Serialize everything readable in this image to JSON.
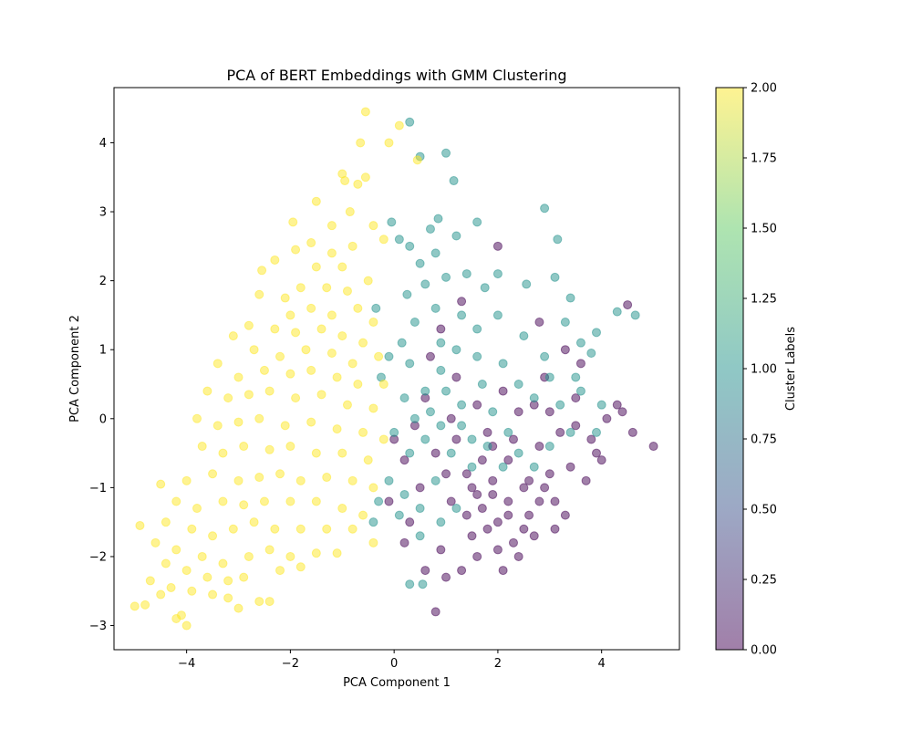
{
  "chart_data": {
    "type": "scatter",
    "title": "PCA of BERT Embeddings with GMM Clustering",
    "xlabel": "PCA Component 1",
    "ylabel": "PCA Component 2",
    "xlim": [
      -5.4,
      5.5
    ],
    "ylim": [
      -3.35,
      4.8
    ],
    "xticks": [
      -4,
      -2,
      0,
      2,
      4
    ],
    "yticks": [
      -3,
      -2,
      -1,
      0,
      1,
      2,
      3,
      4
    ],
    "xtick_labels": [
      "−4",
      "−2",
      "0",
      "2",
      "4"
    ],
    "ytick_labels": [
      "−3",
      "−2",
      "−1",
      "0",
      "1",
      "2",
      "3",
      "4"
    ],
    "grid": false,
    "marker_alpha": 0.5,
    "colorbar": {
      "label": "Cluster Labels",
      "range": [
        0.0,
        2.0
      ],
      "ticks": [
        0.0,
        0.25,
        0.5,
        0.75,
        1.0,
        1.25,
        1.5,
        1.75,
        2.0
      ],
      "tick_labels": [
        "0.00",
        "0.25",
        "0.50",
        "0.75",
        "1.00",
        "1.25",
        "1.50",
        "1.75",
        "2.00"
      ],
      "colormap": [
        "#440154",
        "#3b528b",
        "#21918c",
        "#5ec962",
        "#fde725"
      ]
    },
    "series": [
      {
        "cluster": 0,
        "color": "#440154",
        "points": [
          [
            1.4,
            -0.8
          ],
          [
            1.9,
            -1.1
          ],
          [
            2.2,
            -0.6
          ],
          [
            1.7,
            -1.3
          ],
          [
            2.5,
            -1.0
          ],
          [
            1.2,
            -0.3
          ],
          [
            2.8,
            -0.4
          ],
          [
            2.0,
            -1.5
          ],
          [
            1.5,
            -1.7
          ],
          [
            2.3,
            -1.8
          ],
          [
            3.0,
            -0.8
          ],
          [
            2.6,
            -1.4
          ],
          [
            1.1,
            -1.2
          ],
          [
            0.8,
            -0.5
          ],
          [
            1.8,
            -0.2
          ],
          [
            2.4,
            0.1
          ],
          [
            3.2,
            -0.2
          ],
          [
            3.5,
            0.3
          ],
          [
            2.9,
            0.6
          ],
          [
            2.1,
            0.4
          ],
          [
            1.6,
            0.2
          ],
          [
            0.5,
            -1.0
          ],
          [
            0.3,
            -1.5
          ],
          [
            0.9,
            -1.9
          ],
          [
            1.3,
            -2.2
          ],
          [
            1.0,
            -2.3
          ],
          [
            1.6,
            -2.0
          ],
          [
            2.0,
            -1.9
          ],
          [
            2.7,
            -1.7
          ],
          [
            3.1,
            -1.2
          ],
          [
            3.4,
            -0.7
          ],
          [
            3.8,
            -0.3
          ],
          [
            4.0,
            -0.6
          ],
          [
            4.3,
            0.2
          ],
          [
            4.6,
            -0.2
          ],
          [
            5.0,
            -0.4
          ],
          [
            4.4,
            0.1
          ],
          [
            4.5,
            1.65
          ],
          [
            3.6,
            0.8
          ],
          [
            3.3,
            1.0
          ],
          [
            2.8,
            1.4
          ],
          [
            2.0,
            2.5
          ],
          [
            1.3,
            1.7
          ],
          [
            0.9,
            1.3
          ],
          [
            0.7,
            0.9
          ],
          [
            0.8,
            -2.8
          ],
          [
            0.6,
            -2.2
          ],
          [
            0.2,
            -1.8
          ],
          [
            -0.1,
            -1.2
          ],
          [
            0.0,
            -0.3
          ],
          [
            0.4,
            -0.1
          ],
          [
            1.1,
            0.0
          ],
          [
            1.9,
            -0.4
          ],
          [
            2.2,
            -1.2
          ],
          [
            2.6,
            -0.9
          ],
          [
            1.5,
            -1.0
          ],
          [
            1.7,
            -0.6
          ],
          [
            2.3,
            -0.3
          ],
          [
            2.9,
            -1.0
          ],
          [
            3.3,
            -1.4
          ],
          [
            1.8,
            -1.6
          ],
          [
            2.4,
            -2.0
          ],
          [
            2.1,
            -2.2
          ],
          [
            1.4,
            -1.4
          ],
          [
            1.0,
            -0.8
          ],
          [
            3.7,
            -0.9
          ],
          [
            3.9,
            -0.5
          ],
          [
            4.1,
            0.0
          ],
          [
            2.7,
            0.2
          ],
          [
            3.0,
            0.1
          ],
          [
            3.5,
            -0.1
          ],
          [
            1.2,
            0.6
          ],
          [
            0.6,
            0.3
          ],
          [
            0.2,
            -0.6
          ],
          [
            2.5,
            -1.6
          ],
          [
            2.2,
            -1.4
          ],
          [
            1.9,
            -0.9
          ],
          [
            1.6,
            -1.1
          ],
          [
            2.8,
            -1.2
          ],
          [
            3.1,
            -1.6
          ]
        ]
      },
      {
        "cluster": 1,
        "color": "#21918c",
        "points": [
          [
            0.3,
            4.3
          ],
          [
            0.5,
            3.8
          ],
          [
            1.0,
            3.85
          ],
          [
            1.15,
            3.45
          ],
          [
            2.9,
            3.05
          ],
          [
            3.15,
            2.6
          ],
          [
            1.6,
            2.85
          ],
          [
            0.85,
            2.9
          ],
          [
            0.7,
            2.75
          ],
          [
            0.3,
            2.5
          ],
          [
            -0.05,
            2.85
          ],
          [
            0.1,
            2.6
          ],
          [
            0.5,
            2.25
          ],
          [
            0.8,
            2.4
          ],
          [
            1.2,
            2.65
          ],
          [
            1.4,
            2.1
          ],
          [
            1.0,
            2.05
          ],
          [
            0.6,
            1.95
          ],
          [
            0.25,
            1.8
          ],
          [
            0.4,
            1.4
          ],
          [
            0.8,
            1.6
          ],
          [
            1.3,
            1.5
          ],
          [
            1.75,
            1.9
          ],
          [
            2.0,
            2.1
          ],
          [
            2.55,
            1.95
          ],
          [
            3.1,
            2.05
          ],
          [
            3.4,
            1.75
          ],
          [
            3.3,
            1.4
          ],
          [
            3.6,
            1.1
          ],
          [
            3.9,
            1.25
          ],
          [
            4.3,
            1.55
          ],
          [
            4.65,
            1.5
          ],
          [
            3.8,
            0.95
          ],
          [
            3.5,
            0.6
          ],
          [
            2.9,
            0.9
          ],
          [
            2.5,
            1.2
          ],
          [
            2.0,
            1.5
          ],
          [
            1.6,
            1.3
          ],
          [
            1.2,
            1.0
          ],
          [
            0.9,
            0.7
          ],
          [
            0.6,
            0.4
          ],
          [
            0.3,
            0.8
          ],
          [
            0.2,
            0.3
          ],
          [
            0.4,
            0.0
          ],
          [
            0.0,
            -0.2
          ],
          [
            0.3,
            -0.5
          ],
          [
            0.6,
            -0.3
          ],
          [
            0.9,
            -0.1
          ],
          [
            1.3,
            0.2
          ],
          [
            1.7,
            0.5
          ],
          [
            2.1,
            0.8
          ],
          [
            2.4,
            0.5
          ],
          [
            2.7,
            0.3
          ],
          [
            3.0,
            0.6
          ],
          [
            3.2,
            0.2
          ],
          [
            3.4,
            -0.2
          ],
          [
            3.6,
            0.4
          ],
          [
            3.9,
            -0.2
          ],
          [
            4.0,
            0.2
          ],
          [
            2.2,
            -0.2
          ],
          [
            1.9,
            0.1
          ],
          [
            1.5,
            -0.3
          ],
          [
            1.1,
            -0.5
          ],
          [
            0.8,
            -0.9
          ],
          [
            0.5,
            -1.3
          ],
          [
            0.2,
            -1.1
          ],
          [
            -0.1,
            -0.9
          ],
          [
            -0.3,
            -1.2
          ],
          [
            -0.4,
            -1.5
          ],
          [
            0.1,
            -1.4
          ],
          [
            0.5,
            -1.7
          ],
          [
            0.9,
            -1.5
          ],
          [
            1.2,
            -1.3
          ],
          [
            1.5,
            -0.7
          ],
          [
            1.8,
            -0.4
          ],
          [
            2.1,
            -0.7
          ],
          [
            2.4,
            -0.5
          ],
          [
            2.7,
            -0.7
          ],
          [
            3.0,
            -0.4
          ],
          [
            1.0,
            0.4
          ],
          [
            0.7,
            0.1
          ],
          [
            -0.25,
            0.6
          ],
          [
            -0.1,
            0.9
          ],
          [
            -0.35,
            1.6
          ],
          [
            0.15,
            1.1
          ],
          [
            0.3,
            -2.4
          ],
          [
            0.55,
            -2.4
          ],
          [
            1.3,
            -0.1
          ],
          [
            1.6,
            0.9
          ],
          [
            0.9,
            1.1
          ]
        ]
      },
      {
        "cluster": 2,
        "color": "#fde725",
        "points": [
          [
            -0.55,
            4.45
          ],
          [
            0.1,
            4.25
          ],
          [
            0.45,
            3.75
          ],
          [
            -0.65,
            4.0
          ],
          [
            -0.1,
            4.0
          ],
          [
            -1.0,
            3.55
          ],
          [
            -0.95,
            3.45
          ],
          [
            -0.55,
            3.5
          ],
          [
            -0.7,
            3.4
          ],
          [
            -1.5,
            3.15
          ],
          [
            -1.95,
            2.85
          ],
          [
            -1.2,
            2.8
          ],
          [
            -0.85,
            3.0
          ],
          [
            -0.4,
            2.8
          ],
          [
            -0.2,
            2.6
          ],
          [
            -1.6,
            2.55
          ],
          [
            -1.9,
            2.45
          ],
          [
            -1.2,
            2.4
          ],
          [
            -0.8,
            2.5
          ],
          [
            -2.3,
            2.3
          ],
          [
            -2.55,
            2.15
          ],
          [
            -1.5,
            2.2
          ],
          [
            -1.0,
            2.2
          ],
          [
            -0.5,
            2.0
          ],
          [
            -1.8,
            1.9
          ],
          [
            -1.3,
            1.9
          ],
          [
            -0.9,
            1.85
          ],
          [
            -2.1,
            1.75
          ],
          [
            -2.6,
            1.8
          ],
          [
            -2.0,
            1.5
          ],
          [
            -1.6,
            1.6
          ],
          [
            -1.2,
            1.5
          ],
          [
            -0.7,
            1.6
          ],
          [
            -0.4,
            1.4
          ],
          [
            -2.8,
            1.35
          ],
          [
            -2.3,
            1.3
          ],
          [
            -1.9,
            1.25
          ],
          [
            -1.4,
            1.3
          ],
          [
            -1.0,
            1.2
          ],
          [
            -0.6,
            1.1
          ],
          [
            -3.1,
            1.2
          ],
          [
            -2.7,
            1.0
          ],
          [
            -2.2,
            0.9
          ],
          [
            -1.7,
            1.0
          ],
          [
            -1.2,
            0.95
          ],
          [
            -0.8,
            0.8
          ],
          [
            -0.3,
            0.9
          ],
          [
            -3.4,
            0.8
          ],
          [
            -3.0,
            0.6
          ],
          [
            -2.5,
            0.7
          ],
          [
            -2.0,
            0.65
          ],
          [
            -1.6,
            0.7
          ],
          [
            -1.1,
            0.6
          ],
          [
            -0.7,
            0.5
          ],
          [
            -0.2,
            0.5
          ],
          [
            -3.6,
            0.4
          ],
          [
            -3.2,
            0.3
          ],
          [
            -2.8,
            0.35
          ],
          [
            -2.4,
            0.4
          ],
          [
            -1.9,
            0.3
          ],
          [
            -1.4,
            0.35
          ],
          [
            -0.9,
            0.2
          ],
          [
            -0.4,
            0.15
          ],
          [
            -3.8,
            0.0
          ],
          [
            -3.4,
            -0.1
          ],
          [
            -3.0,
            -0.05
          ],
          [
            -2.6,
            0.0
          ],
          [
            -2.1,
            -0.1
          ],
          [
            -1.6,
            -0.05
          ],
          [
            -1.1,
            -0.15
          ],
          [
            -0.6,
            -0.2
          ],
          [
            -0.2,
            -0.3
          ],
          [
            -3.7,
            -0.4
          ],
          [
            -3.3,
            -0.5
          ],
          [
            -2.9,
            -0.4
          ],
          [
            -2.4,
            -0.45
          ],
          [
            -2.0,
            -0.4
          ],
          [
            -1.5,
            -0.5
          ],
          [
            -1.0,
            -0.5
          ],
          [
            -0.5,
            -0.6
          ],
          [
            -4.0,
            -0.9
          ],
          [
            -3.5,
            -0.8
          ],
          [
            -3.0,
            -0.9
          ],
          [
            -2.6,
            -0.85
          ],
          [
            -2.2,
            -0.8
          ],
          [
            -1.8,
            -0.9
          ],
          [
            -1.3,
            -0.85
          ],
          [
            -0.8,
            -0.9
          ],
          [
            -0.4,
            -1.0
          ],
          [
            -4.5,
            -0.95
          ],
          [
            -4.2,
            -1.2
          ],
          [
            -3.8,
            -1.3
          ],
          [
            -3.3,
            -1.2
          ],
          [
            -2.9,
            -1.25
          ],
          [
            -2.5,
            -1.2
          ],
          [
            -2.0,
            -1.2
          ],
          [
            -1.5,
            -1.2
          ],
          [
            -1.0,
            -1.3
          ],
          [
            -0.6,
            -1.4
          ],
          [
            -4.4,
            -1.5
          ],
          [
            -3.9,
            -1.6
          ],
          [
            -3.5,
            -1.7
          ],
          [
            -3.1,
            -1.6
          ],
          [
            -2.7,
            -1.5
          ],
          [
            -2.3,
            -1.6
          ],
          [
            -1.8,
            -1.6
          ],
          [
            -1.3,
            -1.6
          ],
          [
            -0.8,
            -1.6
          ],
          [
            -0.4,
            -1.8
          ],
          [
            -4.9,
            -1.55
          ],
          [
            -4.6,
            -1.8
          ],
          [
            -4.2,
            -1.9
          ],
          [
            -3.7,
            -2.0
          ],
          [
            -3.3,
            -2.1
          ],
          [
            -2.8,
            -2.0
          ],
          [
            -2.4,
            -1.9
          ],
          [
            -2.0,
            -2.0
          ],
          [
            -1.5,
            -1.95
          ],
          [
            -1.1,
            -1.95
          ],
          [
            -4.4,
            -2.1
          ],
          [
            -4.0,
            -2.2
          ],
          [
            -3.6,
            -2.3
          ],
          [
            -3.2,
            -2.35
          ],
          [
            -2.9,
            -2.3
          ],
          [
            -2.2,
            -2.2
          ],
          [
            -1.8,
            -2.15
          ],
          [
            -4.7,
            -2.35
          ],
          [
            -4.3,
            -2.45
          ],
          [
            -3.9,
            -2.5
          ],
          [
            -3.5,
            -2.55
          ],
          [
            -4.8,
            -2.7
          ],
          [
            -4.5,
            -2.55
          ],
          [
            -4.1,
            -2.85
          ],
          [
            -4.0,
            -3.0
          ],
          [
            -3.2,
            -2.6
          ],
          [
            -2.6,
            -2.65
          ],
          [
            -2.4,
            -2.65
          ],
          [
            -5.0,
            -2.72
          ],
          [
            -4.2,
            -2.9
          ],
          [
            -3.0,
            -2.75
          ]
        ]
      }
    ]
  }
}
